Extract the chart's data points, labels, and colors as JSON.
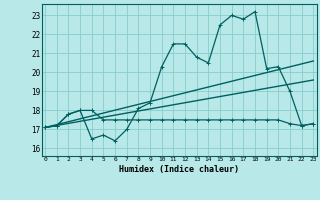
{
  "xlabel": "Humidex (Indice chaleur)",
  "background_color": "#b8e8e8",
  "grid_color": "#88cccc",
  "line_color": "#006060",
  "x_ticks": [
    0,
    1,
    2,
    3,
    4,
    5,
    6,
    7,
    8,
    9,
    10,
    11,
    12,
    13,
    14,
    15,
    16,
    17,
    18,
    19,
    20,
    21,
    22,
    23
  ],
  "y_ticks": [
    16,
    17,
    18,
    19,
    20,
    21,
    22,
    23
  ],
  "xlim": [
    -0.3,
    23.3
  ],
  "ylim": [
    15.6,
    23.6
  ],
  "line1_x": [
    0,
    1,
    2,
    3,
    4,
    5,
    6,
    7,
    8,
    9,
    10,
    11,
    12,
    13,
    14,
    15,
    16,
    17,
    18,
    19,
    20,
    21,
    22,
    23
  ],
  "line1_y": [
    17.1,
    17.2,
    17.8,
    18.0,
    16.5,
    16.7,
    16.4,
    17.0,
    18.1,
    18.4,
    20.3,
    21.5,
    21.5,
    20.8,
    20.5,
    22.5,
    23.0,
    22.8,
    23.2,
    20.2,
    20.3,
    19.0,
    17.2,
    17.3
  ],
  "line2_x": [
    0,
    1,
    2,
    3,
    4,
    5,
    6,
    7,
    8,
    9,
    10,
    11,
    12,
    13,
    14,
    15,
    16,
    17,
    18,
    19,
    20,
    21,
    22,
    23
  ],
  "line2_y": [
    17.1,
    17.2,
    17.8,
    18.0,
    18.0,
    17.5,
    17.5,
    17.5,
    17.5,
    17.5,
    17.5,
    17.5,
    17.5,
    17.5,
    17.5,
    17.5,
    17.5,
    17.5,
    17.5,
    17.5,
    17.5,
    17.3,
    17.2,
    17.3
  ],
  "line3_x": [
    0,
    23
  ],
  "line3_y": [
    17.1,
    20.6
  ],
  "line4_x": [
    0,
    23
  ],
  "line4_y": [
    17.1,
    19.6
  ]
}
